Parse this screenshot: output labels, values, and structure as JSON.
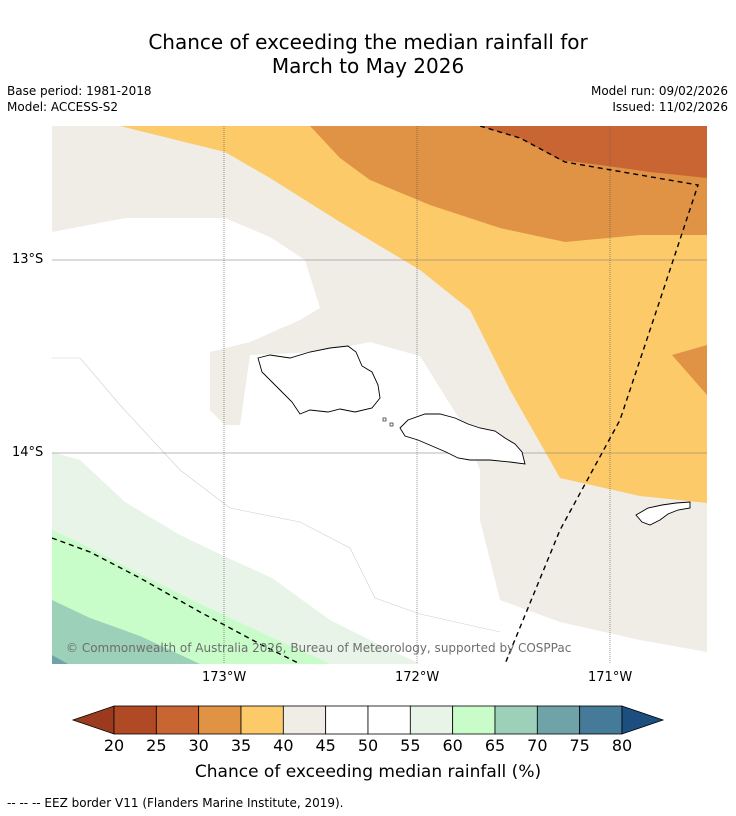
{
  "title": {
    "line1": "Chance of exceeding the median rainfall for",
    "line2": "March to May 2026"
  },
  "meta": {
    "base_period": "Base period: 1981-2018",
    "model": "Model: ACCESS-S2",
    "model_run": "Model run: 09/02/2026",
    "issued": "Issued: 11/02/2026"
  },
  "axes": {
    "lat_labels": [
      "13°S",
      "14°S"
    ],
    "lon_labels": [
      "173°W",
      "172°W",
      "171°W"
    ]
  },
  "copyright": "© Commonwealth of Australia 2026, Bureau of Meteorology, supported by COSPPac",
  "colorbar": {
    "title": "Chance of exceeding median rainfall (%)",
    "ticks": [
      "20",
      "25",
      "30",
      "35",
      "40",
      "45",
      "50",
      "55",
      "60",
      "65",
      "70",
      "75",
      "80"
    ],
    "colors": {
      "below20": "#9b3a1f",
      "c20_25": "#b04a25",
      "c25_30": "#c96532",
      "c30_35": "#e09245",
      "c35_40": "#fdca6a",
      "c40_45": "#f0ece6",
      "c45_50": "#ffffff",
      "c50_55": "#ffffff",
      "c55_60": "#e8f4e8",
      "c60_65": "#c8fcc8",
      "c65_70": "#9dd0b8",
      "c70_75": "#6ea4a8",
      "c75_80": "#457a98",
      "above80": "#1c4f80"
    }
  },
  "footnote": "--  --  -- EEZ border V11 (Flanders Marine Institute, 2019)."
}
